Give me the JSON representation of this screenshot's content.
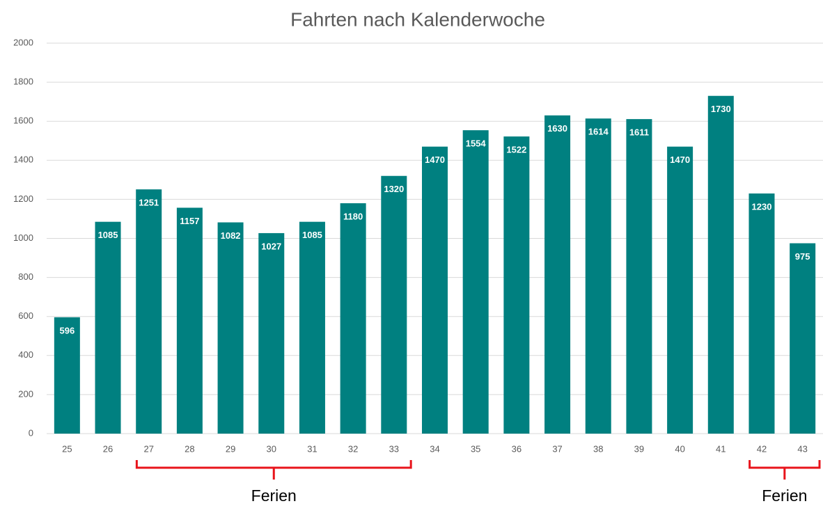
{
  "chart_data": {
    "type": "bar",
    "title": "Fahrten nach Kalenderwoche",
    "categories": [
      "25",
      "26",
      "27",
      "28",
      "29",
      "30",
      "31",
      "32",
      "33",
      "34",
      "35",
      "36",
      "37",
      "38",
      "39",
      "40",
      "41",
      "42",
      "43"
    ],
    "values": [
      596,
      1085,
      1251,
      1157,
      1082,
      1027,
      1085,
      1180,
      1320,
      1470,
      1554,
      1522,
      1630,
      1614,
      1611,
      1470,
      1730,
      1230,
      975
    ],
    "color": "#008080",
    "ylim": [
      0,
      2000
    ],
    "yticks": [
      0,
      200,
      400,
      600,
      800,
      1000,
      1200,
      1400,
      1600,
      1800,
      2000
    ],
    "grid": true,
    "annotations": [
      {
        "text": "Ferien",
        "categories": [
          "27",
          "33"
        ],
        "color": "#e8141b"
      },
      {
        "text": "Ferien",
        "categories": [
          "42",
          "43"
        ],
        "color": "#e8141b"
      }
    ]
  }
}
